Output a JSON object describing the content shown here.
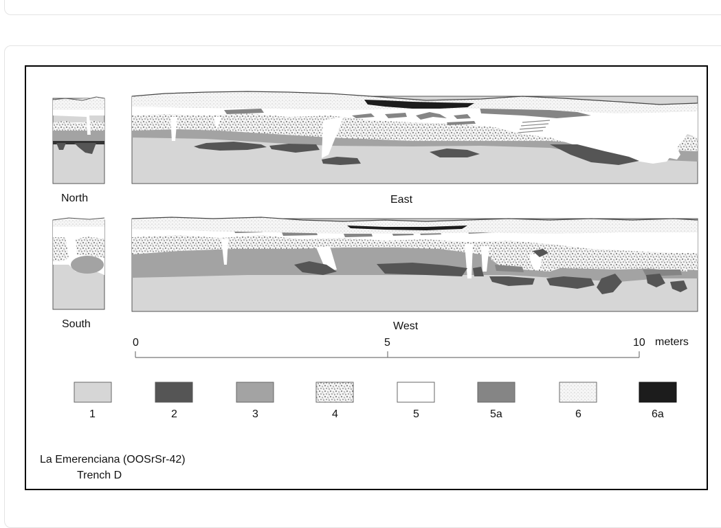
{
  "figure": {
    "site_name": "La Emerenciana (OOSrSr-42)",
    "trench": "Trench D",
    "profiles": [
      {
        "id": "north",
        "label": "North"
      },
      {
        "id": "east",
        "label": "East"
      },
      {
        "id": "south",
        "label": "South"
      },
      {
        "id": "west",
        "label": "West"
      }
    ],
    "scale": {
      "ticks": [
        "0",
        "5",
        "10"
      ],
      "unit": "meters",
      "max_value": 10
    },
    "legend": [
      {
        "label": "1",
        "pattern": "light-gray",
        "color": "#d6d6d6"
      },
      {
        "label": "2",
        "pattern": "dark-gray",
        "color": "#555555"
      },
      {
        "label": "3",
        "pattern": "medium-gray",
        "color": "#a3a3a3"
      },
      {
        "label": "4",
        "pattern": "coarse-stipple",
        "color": "#c8c8c8"
      },
      {
        "label": "5",
        "pattern": "white",
        "color": "#ffffff"
      },
      {
        "label": "5a",
        "pattern": "mid-dark-gray",
        "color": "#858585"
      },
      {
        "label": "6",
        "pattern": "fine-stipple",
        "color": "#eeeeee"
      },
      {
        "label": "6a",
        "pattern": "black",
        "color": "#1c1c1c"
      }
    ]
  }
}
